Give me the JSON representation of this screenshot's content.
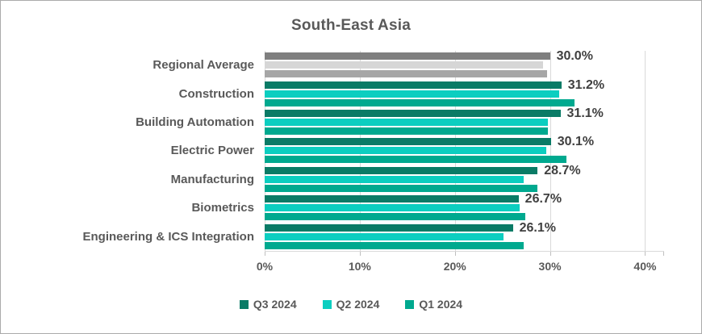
{
  "window": {
    "background_color": "#FFFFFF",
    "border_color": "#ABABAB"
  },
  "chart_data": {
    "type": "bar",
    "orientation": "horizontal",
    "title": "South-East Asia",
    "categories": [
      "Regional Average",
      "Construction",
      "Building Automation",
      "Electric Power",
      "Manufacturing",
      "Biometrics",
      "Engineering & ICS Integration"
    ],
    "series": [
      {
        "name": "Q3 2024",
        "color": "#0A7B66",
        "regional_average_color": "#7F7F7F",
        "show_data_labels": true,
        "values": [
          30.0,
          31.2,
          31.1,
          30.1,
          28.7,
          26.7,
          26.1
        ]
      },
      {
        "name": "Q2 2024",
        "color": "#0CCEC0",
        "regional_average_color": "#D6D6D6",
        "show_data_labels": false,
        "values": [
          29.3,
          31.0,
          29.8,
          29.6,
          27.2,
          26.8,
          25.1
        ]
      },
      {
        "name": "Q1 2024",
        "color": "#00A98F",
        "regional_average_color": "#A6A6A6",
        "show_data_labels": false,
        "values": [
          29.7,
          32.6,
          29.8,
          31.7,
          28.7,
          27.4,
          27.2
        ]
      }
    ],
    "data_labels": [
      "30.0%",
      "31.2%",
      "31.1%",
      "30.1%",
      "28.7%",
      "26.7%",
      "26.1%"
    ],
    "x_axis": {
      "max": 42,
      "ticks": [
        {
          "value": 0,
          "label": "0%"
        },
        {
          "value": 10,
          "label": "10%"
        },
        {
          "value": 20,
          "label": "20%"
        },
        {
          "value": 30,
          "label": "30%"
        },
        {
          "value": 40,
          "label": "40%"
        }
      ]
    },
    "legend": {
      "position": "bottom"
    },
    "grid": true,
    "styles": {
      "gridline_color": "#D9D9D9",
      "axis_line_color": "#D9D9D9",
      "tick_mark_color": "#BFBFBF",
      "title_color": "#595959",
      "category_label_color": "#595959",
      "data_label_color": "#3F3F3F",
      "tick_label_color": "#595959",
      "legend_text_color": "#595959"
    }
  }
}
